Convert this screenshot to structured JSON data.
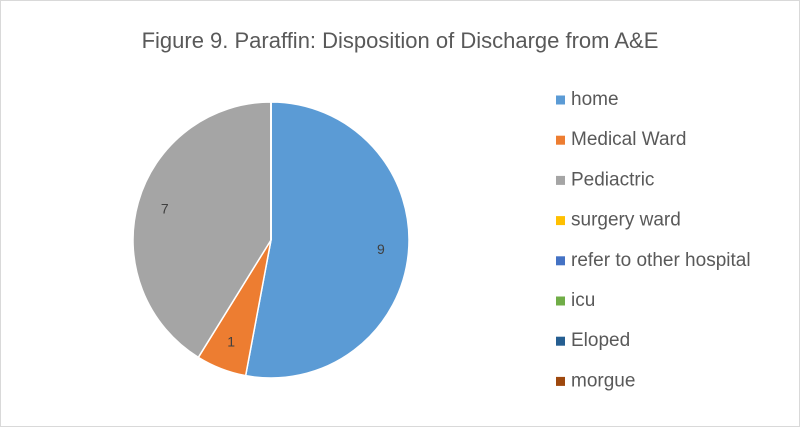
{
  "chart_data": {
    "type": "pie",
    "title": "Figure 9. Paraffin: Disposition of Discharge from A&E",
    "categories": [
      "home",
      "Medical Ward",
      "Pediactric",
      "surgery ward",
      "refer to other hospital",
      "icu",
      "Eloped",
      "morgue"
    ],
    "values": [
      9,
      1,
      7,
      0,
      0,
      0,
      0,
      0
    ],
    "colors": [
      "#5b9bd5",
      "#ed7d31",
      "#a5a5a5",
      "#ffc000",
      "#4472c4",
      "#70ad47",
      "#255e91",
      "#9e480e"
    ],
    "legend": "right"
  }
}
